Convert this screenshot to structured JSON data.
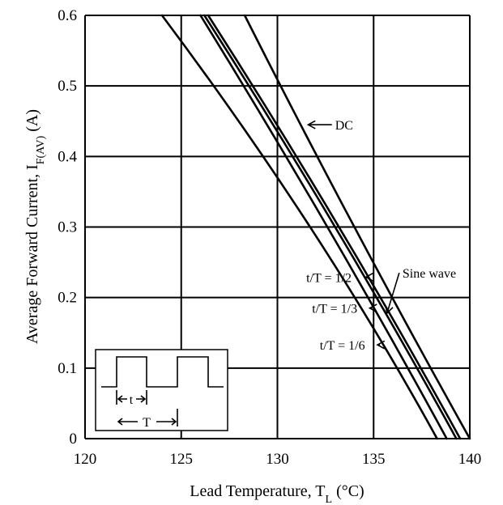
{
  "chart_data": {
    "type": "line",
    "xlabel_main": "Lead Temperature, T",
    "xlabel_sub": "L",
    "xlabel_unit": " (°C)",
    "ylabel_main": "Average Forward Current, I",
    "ylabel_sub": "F(AV)",
    "ylabel_unit": " (A)",
    "xlim": [
      120,
      140
    ],
    "ylim": [
      0,
      0.6
    ],
    "x_ticks": [
      120,
      125,
      130,
      135,
      140
    ],
    "y_ticks": [
      0,
      0.1,
      0.2,
      0.3,
      0.4,
      0.5,
      0.6
    ],
    "x_tick_labels": [
      "120",
      "125",
      "130",
      "135",
      "140"
    ],
    "y_tick_labels": [
      "0",
      "0.1",
      "0.2",
      "0.3",
      "0.4",
      "0.5",
      "0.6"
    ],
    "grid": true,
    "series": [
      {
        "name": "DC",
        "points": [
          [
            128.3,
            0.6
          ],
          [
            134.0,
            0.3
          ],
          [
            140.0,
            0.0
          ]
        ]
      },
      {
        "name": "Sine wave",
        "points": [
          [
            126.4,
            0.6
          ],
          [
            133.2,
            0.3
          ],
          [
            139.5,
            0.0
          ]
        ]
      },
      {
        "name": "t/T = 1/2",
        "points": [
          [
            126.2,
            0.6
          ],
          [
            133.0,
            0.3
          ],
          [
            139.3,
            0.0
          ]
        ]
      },
      {
        "name": "t/T = 1/3",
        "points": [
          [
            126.0,
            0.6
          ],
          [
            132.6,
            0.3
          ],
          [
            138.8,
            0.0
          ]
        ]
      },
      {
        "name": "t/T = 1/6",
        "points": [
          [
            124.0,
            0.6
          ],
          [
            131.7,
            0.3
          ],
          [
            138.3,
            0.0
          ]
        ]
      }
    ],
    "annotations": [
      {
        "label": "DC",
        "x": 133.0,
        "y": 0.445,
        "target": [
          131.6,
          0.445
        ]
      },
      {
        "label": "Sine wave",
        "x": 136.5,
        "y": 0.235,
        "target": [
          135.7,
          0.178
        ]
      },
      {
        "label": "t/T = 1/2",
        "x": 131.5,
        "y": 0.229,
        "target": [
          134.6,
          0.229
        ]
      },
      {
        "label": "t/T = 1/3",
        "x": 131.8,
        "y": 0.185,
        "target": [
          134.8,
          0.185
        ]
      },
      {
        "label": "t/T = 1/6",
        "x": 132.2,
        "y": 0.133,
        "target": [
          135.2,
          0.133
        ]
      }
    ],
    "inset": {
      "t_label": "t",
      "T_label": "T"
    }
  }
}
